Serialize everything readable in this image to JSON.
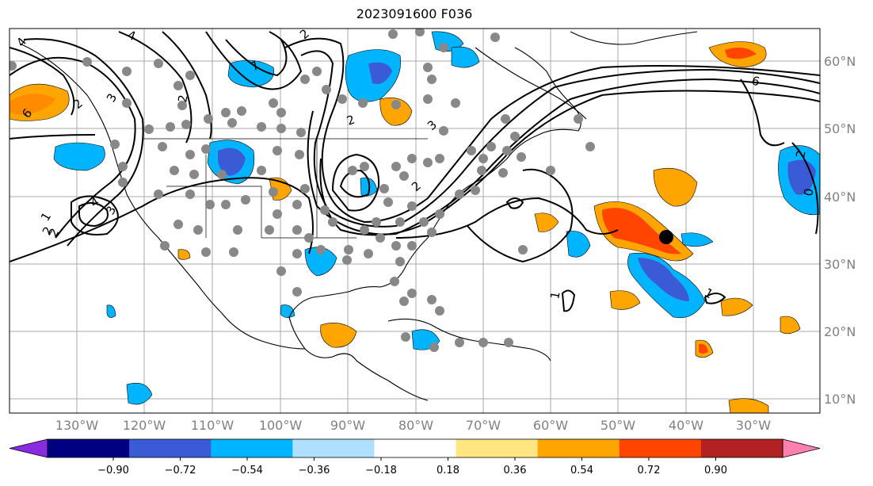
{
  "title": "2023091600 F036",
  "map": {
    "lon_labels": [
      "130°W",
      "120°W",
      "110°W",
      "100°W",
      "90°W",
      "80°W",
      "70°W",
      "60°W",
      "50°W",
      "40°W",
      "30°W"
    ],
    "lat_labels": [
      "60°N",
      "50°N",
      "40°N",
      "30°N",
      "20°N",
      "10°N"
    ],
    "contour_labels": [
      "2",
      "4",
      "3",
      "2",
      "7",
      "2",
      "6",
      "1",
      "2",
      "4",
      "2",
      "3",
      "2",
      "3",
      "6",
      "2",
      "1",
      "0",
      "1",
      "2",
      "4"
    ],
    "marker": "storm-center-dot"
  },
  "colorbar": {
    "tick_labels": [
      "−0.90",
      "−0.72",
      "−0.54",
      "−0.36",
      "−0.18",
      "0.18",
      "0.36",
      "0.54",
      "0.72",
      "0.90"
    ],
    "colors": [
      "#8a2be2",
      "#000080",
      "#3b5bd6",
      "#00b4ff",
      "#b0e0ff",
      "#ffffff",
      "#ffe680",
      "#ffa500",
      "#ff4500",
      "#b22222",
      "#ff80b0"
    ]
  }
}
